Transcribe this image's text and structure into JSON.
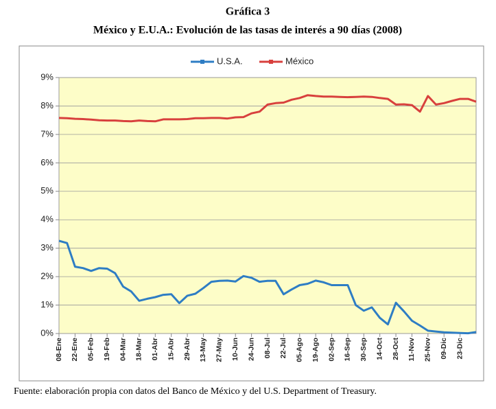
{
  "chart_data": {
    "type": "line",
    "title": "Gráfica 3",
    "subtitle": "México y E.U.A.: Evolución de las tasas de interés a 90 días (2008)",
    "source": "Fuente: elaboración propia con datos del Banco de México y del U.S. Department of Treasury.",
    "categories": [
      "08-Ene",
      null,
      "22-Ene",
      null,
      "05-Feb",
      null,
      "19-Feb",
      null,
      "04-Mar",
      null,
      "18-Mar",
      null,
      "01-Abr",
      null,
      "15-Abr",
      null,
      "29-Abr",
      null,
      "13-May",
      null,
      "27-May",
      null,
      "10-Jun",
      null,
      "24-Jun",
      null,
      "08-Jul",
      null,
      "22-Jul",
      null,
      "05-Ago",
      null,
      "19-Ago",
      null,
      "02-Sep",
      null,
      "16-Sep",
      null,
      "30-Sep",
      null,
      "14-Oct",
      null,
      "28-Oct",
      null,
      "11-Nov",
      null,
      "25-Nov",
      null,
      "09-Dic",
      null,
      "23-Dic",
      null,
      null
    ],
    "series": [
      {
        "name": "U.S.A.",
        "color": "#2e7dc4",
        "values": [
          3.26,
          3.18,
          2.35,
          2.3,
          2.2,
          2.3,
          2.28,
          2.12,
          1.65,
          1.48,
          1.15,
          1.22,
          1.28,
          1.36,
          1.38,
          1.07,
          1.33,
          1.4,
          1.6,
          1.82,
          1.85,
          1.86,
          1.83,
          2.02,
          1.96,
          1.82,
          1.85,
          1.85,
          1.38,
          1.55,
          1.7,
          1.75,
          1.86,
          1.8,
          1.7,
          1.7,
          1.7,
          1.0,
          0.8,
          0.92,
          0.55,
          0.32,
          1.08,
          0.78,
          0.45,
          0.28,
          0.1,
          0.07,
          0.04,
          0.03,
          0.02,
          0.01,
          0.05
        ]
      },
      {
        "name": "México",
        "color": "#d8403d",
        "values": [
          7.58,
          7.57,
          7.55,
          7.54,
          7.52,
          7.5,
          7.49,
          7.49,
          7.47,
          7.46,
          7.49,
          7.47,
          7.46,
          7.53,
          7.53,
          7.53,
          7.54,
          7.57,
          7.57,
          7.58,
          7.58,
          7.56,
          7.6,
          7.61,
          7.74,
          7.8,
          8.05,
          8.1,
          8.12,
          8.22,
          8.28,
          8.38,
          8.35,
          8.33,
          8.33,
          8.32,
          8.31,
          8.32,
          8.33,
          8.32,
          8.28,
          8.25,
          8.05,
          8.06,
          8.03,
          7.8,
          8.35,
          8.05,
          8.1,
          8.18,
          8.25,
          8.25,
          8.15
        ]
      }
    ],
    "ylim": [
      0,
      9
    ],
    "yticks": [
      {
        "value": 0,
        "label": "0%"
      },
      {
        "value": 1,
        "label": "1%"
      },
      {
        "value": 2,
        "label": "2%"
      },
      {
        "value": 3,
        "label": "3%"
      },
      {
        "value": 4,
        "label": "4%"
      },
      {
        "value": 5,
        "label": "5%"
      },
      {
        "value": 6,
        "label": "6%"
      },
      {
        "value": 7,
        "label": "7%"
      },
      {
        "value": 8,
        "label": "8%"
      },
      {
        "value": 9,
        "label": "9%"
      }
    ],
    "grid": true,
    "legend": "top"
  }
}
